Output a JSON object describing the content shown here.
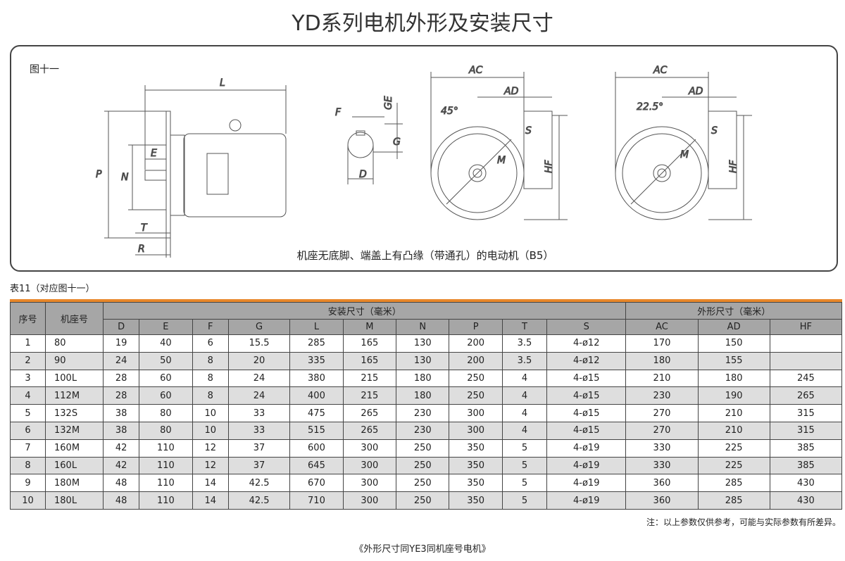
{
  "title": "YD系列电机外形及安装尺寸",
  "figure": {
    "label": "图十一",
    "caption": "机座无底脚、端盖上有凸缘（带通孔）的电动机（B5）",
    "dim_labels": {
      "L": "L",
      "P": "P",
      "N": "N",
      "E": "E",
      "T": "T",
      "R": "R",
      "F": "F",
      "GE": "GE",
      "G": "G",
      "D": "D",
      "AC1": "AC",
      "AD1": "AD",
      "angle1": "45°",
      "S1": "S",
      "M1": "M",
      "HF1": "HF",
      "AC2": "AC",
      "AD2": "AD",
      "angle2": "22.5°",
      "S2": "S",
      "M2": "M",
      "HF2": "HF"
    }
  },
  "table": {
    "label": "表11（对应图十一）",
    "header_index": "序号",
    "header_model": "机座号",
    "group_install": "安装尺寸（毫米）",
    "group_outline": "外形尺寸（毫米）",
    "columns": [
      "D",
      "E",
      "F",
      "G",
      "L",
      "M",
      "N",
      "P",
      "T",
      "S",
      "AC",
      "AD",
      "HF"
    ],
    "rows": [
      [
        "1",
        "80",
        "19",
        "40",
        "6",
        "15.5",
        "285",
        "165",
        "130",
        "200",
        "3.5",
        "4-ø12",
        "170",
        "150",
        ""
      ],
      [
        "2",
        "90",
        "24",
        "50",
        "8",
        "20",
        "335",
        "165",
        "130",
        "200",
        "3.5",
        "4-ø12",
        "180",
        "155",
        ""
      ],
      [
        "3",
        "100L",
        "28",
        "60",
        "8",
        "24",
        "380",
        "215",
        "180",
        "250",
        "4",
        "4-ø15",
        "210",
        "180",
        "245"
      ],
      [
        "4",
        "112M",
        "28",
        "60",
        "8",
        "24",
        "400",
        "215",
        "180",
        "250",
        "4",
        "4-ø15",
        "230",
        "190",
        "265"
      ],
      [
        "5",
        "132S",
        "38",
        "80",
        "10",
        "33",
        "475",
        "265",
        "230",
        "300",
        "4",
        "4-ø15",
        "270",
        "210",
        "315"
      ],
      [
        "6",
        "132M",
        "38",
        "80",
        "10",
        "33",
        "515",
        "265",
        "230",
        "300",
        "4",
        "4-ø15",
        "270",
        "210",
        "315"
      ],
      [
        "7",
        "160M",
        "42",
        "110",
        "12",
        "37",
        "600",
        "300",
        "250",
        "350",
        "5",
        "4-ø19",
        "330",
        "225",
        "385"
      ],
      [
        "8",
        "160L",
        "42",
        "110",
        "12",
        "37",
        "645",
        "300",
        "250",
        "350",
        "5",
        "4-ø19",
        "330",
        "225",
        "385"
      ],
      [
        "9",
        "180M",
        "48",
        "110",
        "14",
        "42.5",
        "670",
        "300",
        "250",
        "350",
        "5",
        "4-ø19",
        "360",
        "285",
        "430"
      ],
      [
        "10",
        "180L",
        "48",
        "110",
        "14",
        "42.5",
        "710",
        "300",
        "250",
        "350",
        "5",
        "4-ø19",
        "360",
        "285",
        "430"
      ]
    ]
  },
  "note": "注：以上参数仅供参考，可能与实际参数有所差异。",
  "footer": "《外形尺寸同YE3同机座号电机》",
  "colors": {
    "accent": "#e8872a",
    "header_bg": "#a6a6a6",
    "stripe": "#dedede"
  }
}
